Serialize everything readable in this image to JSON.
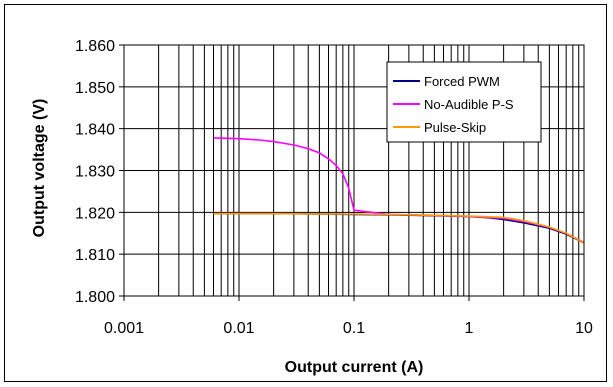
{
  "chart_data": {
    "type": "line",
    "title": "",
    "xlabel": "Output current (A)",
    "ylabel": "Output voltage (V)",
    "x_scale": "log",
    "xlim": [
      0.001,
      10
    ],
    "ylim": [
      1.8,
      1.86
    ],
    "x_ticks": [
      0.001,
      0.01,
      0.1,
      1,
      10
    ],
    "x_tick_labels": [
      "0.001",
      "0.01",
      "0.1",
      "1",
      "10"
    ],
    "y_ticks": [
      1.8,
      1.81,
      1.82,
      1.83,
      1.84,
      1.85,
      1.86
    ],
    "y_tick_labels": [
      "1.800",
      "1.810",
      "1.820",
      "1.830",
      "1.840",
      "1.850",
      "1.860"
    ],
    "grid": true,
    "legend_position": "top-right",
    "series": [
      {
        "name": "Forced PWM",
        "color": "#000080",
        "x": [
          0.006,
          0.01,
          0.02,
          0.05,
          0.1,
          0.2,
          0.5,
          1,
          1.5,
          2,
          3,
          5,
          7,
          10
        ],
        "y": [
          1.8197,
          1.8197,
          1.8197,
          1.8196,
          1.8195,
          1.8194,
          1.8192,
          1.819,
          1.8187,
          1.8183,
          1.8175,
          1.8162,
          1.8148,
          1.8127
        ]
      },
      {
        "name": "No-Audible P-S",
        "color": "#ff00ff",
        "x": [
          0.006,
          0.008,
          0.01,
          0.015,
          0.02,
          0.03,
          0.04,
          0.05,
          0.06,
          0.07,
          0.08,
          0.09,
          0.1,
          0.2,
          0.5,
          1,
          2,
          3,
          5,
          7,
          10
        ],
        "y": [
          1.8378,
          1.8377,
          1.8376,
          1.8373,
          1.8369,
          1.8361,
          1.8352,
          1.8342,
          1.8328,
          1.8312,
          1.8292,
          1.8258,
          1.8205,
          1.8195,
          1.8193,
          1.819,
          1.8186,
          1.8178,
          1.8164,
          1.815,
          1.8128
        ]
      },
      {
        "name": "Pulse-Skip",
        "color": "#ff9900",
        "x": [
          0.006,
          0.01,
          0.02,
          0.05,
          0.1,
          0.2,
          0.5,
          1,
          2,
          3,
          5,
          7,
          10
        ],
        "y": [
          1.8197,
          1.8197,
          1.8197,
          1.8196,
          1.8196,
          1.8195,
          1.8193,
          1.8191,
          1.8188,
          1.818,
          1.8165,
          1.815,
          1.8127
        ]
      }
    ]
  }
}
